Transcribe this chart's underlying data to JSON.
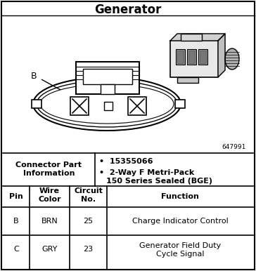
{
  "title": "Generator",
  "part_number": "15355066",
  "connector_type_line1": "2-Way F Metri-Pack",
  "connector_type_line2": "150 Series Sealed (BGE)",
  "diagram_id": "647991",
  "bg_color": "#ffffff",
  "fig_width": 3.64,
  "fig_height": 3.86,
  "dpi": 100,
  "table_rows": [
    [
      "B",
      "BRN",
      "25",
      "Charge Indicator Control"
    ],
    [
      "C",
      "GRY",
      "23",
      "Generator Field Duty\nCycle Signal"
    ]
  ]
}
